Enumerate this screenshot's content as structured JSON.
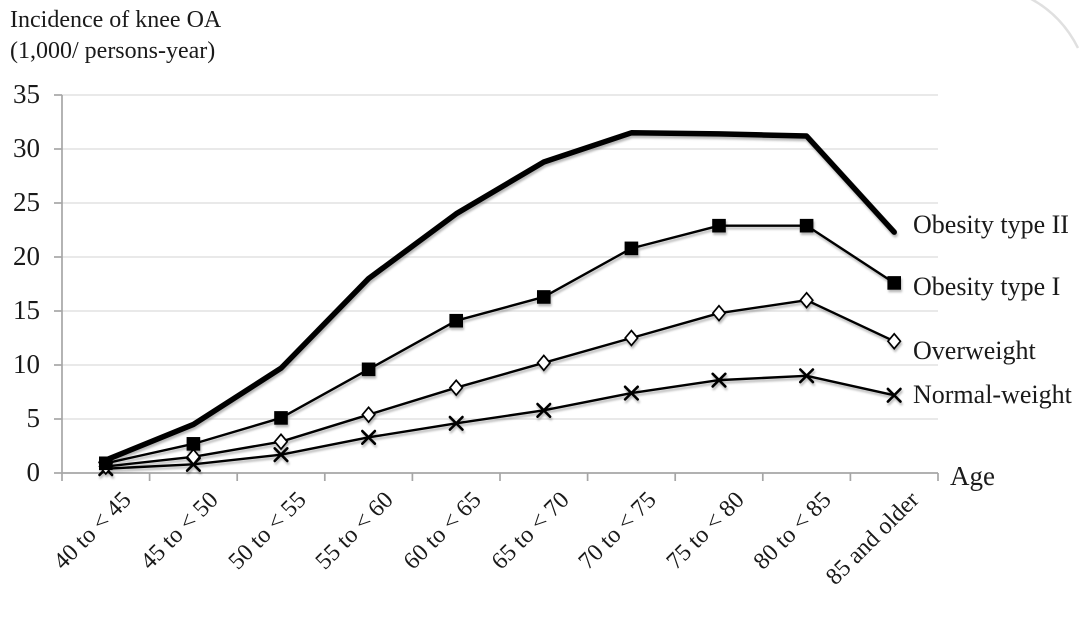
{
  "chart_data": {
    "type": "line",
    "title": "",
    "ylabel": "Incidence of knee OA (1,000/ persons-year)",
    "ylabel_lines": [
      "Incidence of knee OA",
      "(1,000/ persons-year)"
    ],
    "xlabel": "Age",
    "categories": [
      "40 to < 45",
      "45 to < 50",
      "50 to < 55",
      "55 to < 60",
      "60 to < 65",
      "65 to < 70",
      "70 to < 75",
      "75 to < 80",
      "80 to < 85",
      "85 and older"
    ],
    "yticks": [
      0,
      5,
      10,
      15,
      20,
      25,
      30,
      35
    ],
    "ylim": [
      0,
      35
    ],
    "grid": true,
    "legend_position": "right of line ends",
    "series": [
      {
        "name": "Normal-weight",
        "marker": "x",
        "line": "thin",
        "values": [
          0.4,
          0.8,
          1.7,
          3.3,
          4.6,
          5.8,
          7.4,
          8.6,
          9.0,
          7.2
        ]
      },
      {
        "name": "Overweight",
        "marker": "open-diamond",
        "line": "thin",
        "values": [
          0.6,
          1.5,
          2.9,
          5.4,
          7.9,
          10.2,
          12.5,
          14.8,
          16.0,
          12.2
        ]
      },
      {
        "name": "Obesity type I",
        "marker": "filled-square",
        "line": "thin",
        "values": [
          0.9,
          2.7,
          5.1,
          9.6,
          14.1,
          16.3,
          20.8,
          22.9,
          22.9,
          17.6
        ]
      },
      {
        "name": "Obesity type II",
        "marker": "none",
        "line": "thick",
        "values": [
          1.2,
          4.5,
          9.7,
          18.0,
          24.0,
          28.8,
          31.5,
          31.4,
          31.2,
          22.3
        ]
      }
    ],
    "colors": {
      "series_line": "#000000",
      "gridline": "#e2e2e2",
      "axis": "#a6a6a6",
      "text": "#1a1a1a",
      "page_curl": "#e0e0e0"
    }
  }
}
